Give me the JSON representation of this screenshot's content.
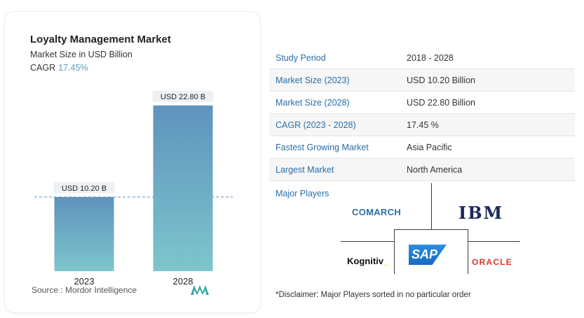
{
  "chart_data": {
    "type": "bar",
    "title": "Loyalty Management Market",
    "subtitle": "Market Size in USD Billion",
    "cagr_label": "CAGR",
    "cagr_value": "17.45%",
    "categories": [
      "2023",
      "2028"
    ],
    "values": [
      10.2,
      22.8
    ],
    "data_labels": [
      "USD 10.20 B",
      "USD 22.80 B"
    ],
    "ylim": [
      0,
      25
    ],
    "grid": false,
    "reference_line": 10.2,
    "colors": {
      "bar_top": "#5e93bd",
      "bar_bottom": "#7ec5cc",
      "label_bg": "#eef1f3",
      "ref_line": "#5a8fbf"
    }
  },
  "source": "Source :  Mordor Intelligence",
  "stats": [
    {
      "label": "Study Period",
      "value": "2018 - 2028"
    },
    {
      "label": "Market Size (2023)",
      "value": "USD 10.20 Billion"
    },
    {
      "label": "Market Size (2028)",
      "value": "USD 22.80 Billion"
    },
    {
      "label": "CAGR (2023 - 2028)",
      "value": "17.45 %"
    },
    {
      "label": "Fastest Growing Market",
      "value": "Asia Pacific"
    },
    {
      "label": "Largest Market",
      "value": "North America"
    }
  ],
  "players_title": "Major Players",
  "players": {
    "comarch": "COMARCH",
    "ibm": "IBM",
    "kognitiv": "Kognitiv",
    "kognitiv_mark": "_",
    "sap": "SAP",
    "oracle": "ORACLE"
  },
  "disclaimer": "*Disclaimer: Major Players sorted in no particular order"
}
